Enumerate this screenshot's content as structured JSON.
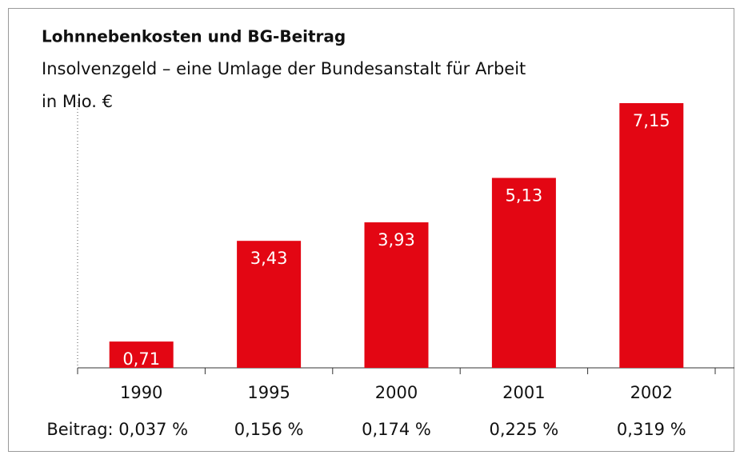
{
  "chart_data": {
    "type": "bar",
    "title": "Lohnnebenkosten und BG-Beitrag",
    "subtitle": "Insolvenzgeld – eine Umlage der Bundesanstalt für Arbeit",
    "unit_label": "in Mio. €",
    "categories": [
      "1990",
      "1995",
      "2000",
      "2001",
      "2002"
    ],
    "values": [
      0.71,
      3.43,
      3.93,
      5.13,
      7.15
    ],
    "value_labels": [
      "0,71",
      "3,43",
      "3,93",
      "5,13",
      "7,15"
    ],
    "annotations": [
      "Beitrag: 0,037 %",
      "0,156 %",
      "0,174 %",
      "0,225 %",
      "0,319 %"
    ],
    "color": "#e30613"
  }
}
